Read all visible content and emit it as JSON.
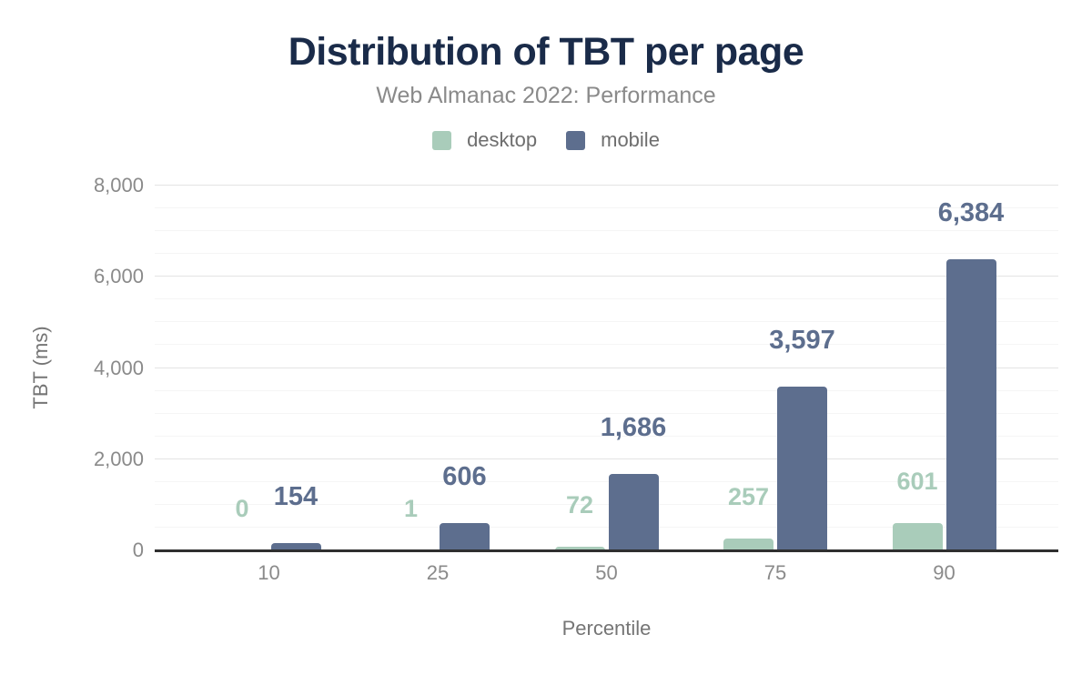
{
  "header": {
    "title": "Distribution of TBT per page",
    "subtitle": "Web Almanac 2022: Performance"
  },
  "colors": {
    "title_navy": "#1a2b49",
    "desktop": "#a9ccba",
    "mobile": "#5d6e8e",
    "axis_line": "#2f2f2f"
  },
  "chart_data": {
    "type": "bar",
    "title": "Distribution of TBT per page",
    "subtitle": "Web Almanac 2022: Performance",
    "categories": [
      "10",
      "25",
      "50",
      "75",
      "90"
    ],
    "series": [
      {
        "name": "desktop",
        "color": "#a9ccba",
        "values": [
          0,
          1,
          72,
          257,
          601
        ],
        "value_labels": [
          "0",
          "1",
          "72",
          "257",
          "601"
        ]
      },
      {
        "name": "mobile",
        "color": "#5d6e8e",
        "values": [
          154,
          606,
          1686,
          3597,
          6384
        ],
        "value_labels": [
          "154",
          "606",
          "1,686",
          "3,597",
          "6,384"
        ]
      }
    ],
    "xlabel": "Percentile",
    "ylabel": "TBT (ms)",
    "ylim": [
      0,
      8000
    ],
    "yticks": [
      0,
      2000,
      4000,
      6000,
      8000
    ],
    "ytick_labels": [
      "0",
      "2,000",
      "4,000",
      "6,000",
      "8,000"
    ],
    "minor_grid_step": 500,
    "grid": true,
    "legend_position": "top"
  }
}
